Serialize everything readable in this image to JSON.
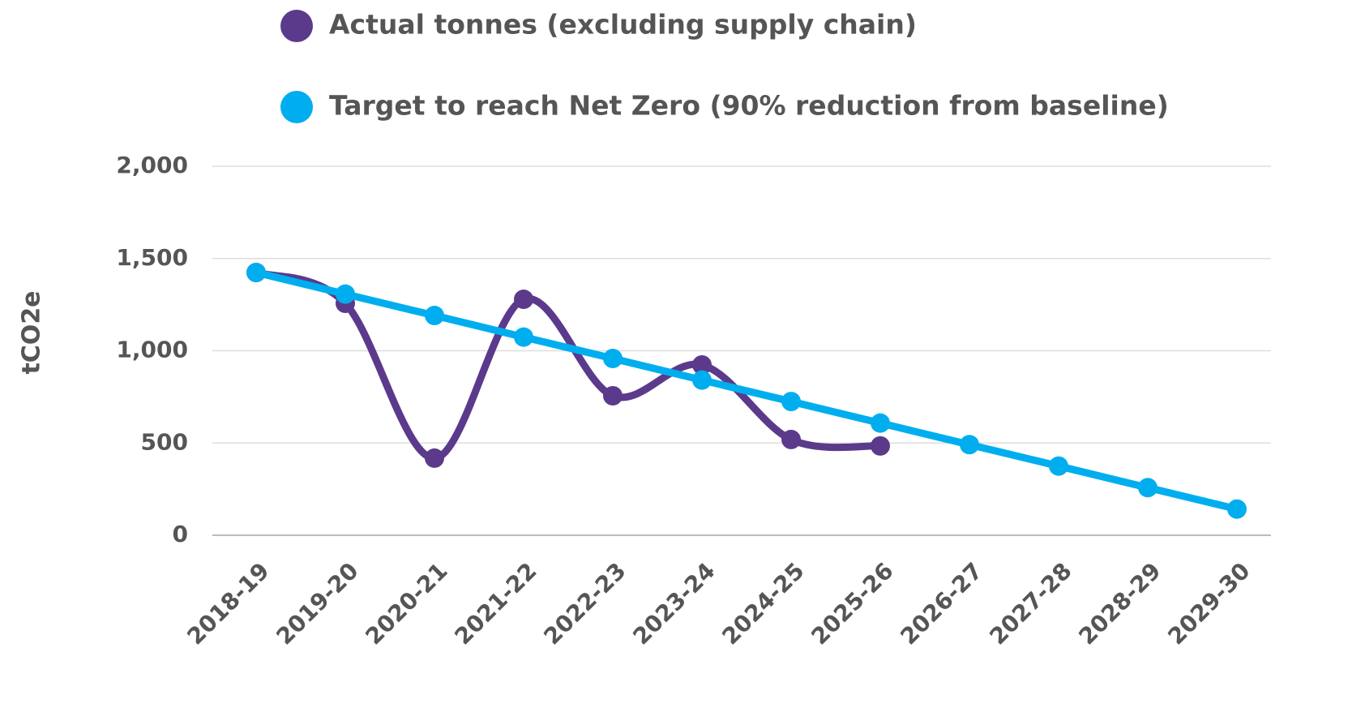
{
  "chart_data": {
    "type": "line",
    "y_label": "tCO2e",
    "categories": [
      "2018-19",
      "2019-20",
      "2020-21",
      "2021-22",
      "2022-23",
      "2023-24",
      "2024-25",
      "2025-26",
      "2026-27",
      "2027-28",
      "2028-29",
      "2029-30"
    ],
    "series": [
      {
        "name": "Actual tonnes (excluding supply chain)",
        "color": "#5b3a8c",
        "smooth": true,
        "values": [
          1424,
          1257,
          418,
          1279,
          756,
          923,
          519,
          484,
          null,
          null,
          null,
          null
        ]
      },
      {
        "name": "Target to reach Net Zero (90% reduction from baseline)",
        "color": "#00aeef",
        "smooth": false,
        "values": [
          1424,
          1307,
          1191,
          1074,
          958,
          841,
          725,
          608,
          491,
          375,
          258,
          142
        ]
      }
    ],
    "ylim": [
      0,
      2000
    ],
    "yticks": [
      0,
      500,
      {
        "value": 1000,
        "label": "1,000"
      },
      {
        "value": 1500,
        "label": "1,500"
      },
      {
        "value": 2000,
        "label": "2,000"
      }
    ],
    "grid": true,
    "legend": "top"
  }
}
